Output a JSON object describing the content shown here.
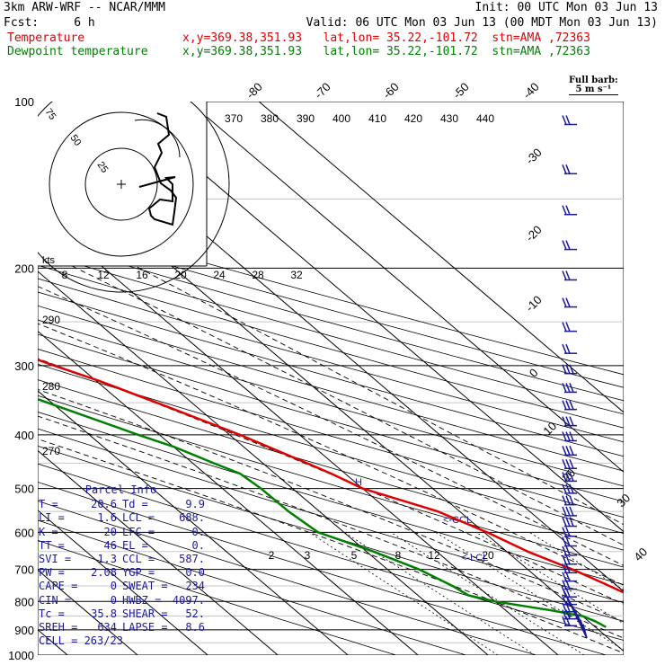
{
  "header": {
    "line1_left": "3km ARW-WRF -- NCAR/MMM",
    "line1_right": "Init: 00 UTC Mon 03 Jun 13",
    "line2_left": "Fcst:     6 h",
    "line2_right": "Valid: 06 UTC Mon 03 Jun 13 (00 MDT Mon 03 Jun 13)",
    "temp_label": "Temperature",
    "temp_info": "x,y=369.38,351.93   lat,lon= 35.22,-101.72  stn=AMA ,72363",
    "dew_label": "Dewpoint temperature",
    "dew_info": "x,y=369.38,351.93   lat,lon= 35.22,-101.72  stn=AMA ,72363"
  },
  "barb_note": {
    "line1": "Full barb:",
    "line2": "5 m s⁻¹"
  },
  "parcel": {
    "title": "Parcel Info",
    "rows": [
      [
        "T",
        "20.6",
        "Td",
        "9.9"
      ],
      [
        "LI",
        "1.6",
        "LCL",
        "688."
      ],
      [
        "K",
        "20",
        "LFC",
        "0."
      ],
      [
        "TT",
        "46",
        "EL",
        "0."
      ],
      [
        "SVI",
        "1.3",
        "CCL",
        "587."
      ],
      [
        "PW",
        "2.08",
        "YGP",
        "0.0"
      ],
      [
        "CAPE",
        "0",
        "SWEAT",
        "234"
      ],
      [
        "CIN",
        "0",
        "HWBZ",
        "4097."
      ],
      [
        "Tc",
        "35.8",
        "SHEAR",
        "52."
      ],
      [
        "SREH",
        "634",
        "LAPSE",
        "8.6"
      ]
    ],
    "cell": "CELL = 263/23"
  },
  "chart_data": {
    "type": "line",
    "title": "",
    "xlabel": "",
    "ylabel": "",
    "pressure_levels_hPa": [
      100,
      200,
      300,
      400,
      500,
      600,
      700,
      800,
      900,
      1000
    ],
    "isotherm_labels_C": [
      "-80",
      "-70",
      "-60",
      "-50",
      "-40",
      "-30",
      "-20",
      "-10",
      "0",
      "10",
      "20",
      "30",
      "40"
    ],
    "theta_labels_K": [
      "370",
      "380",
      "390",
      "400",
      "410",
      "420",
      "430",
      "440"
    ],
    "theta_left_labels_K": [
      "290",
      "280",
      "270"
    ],
    "mixing_ratio_labels": [
      "2",
      "3",
      "5",
      "8",
      "12",
      "20"
    ],
    "hodograph": {
      "rings": [
        "25",
        "50",
        "75"
      ],
      "units": "kts"
    },
    "mixing_ratio_axis_labels": [
      "8",
      "12",
      "16",
      "20",
      "24",
      "28",
      "32"
    ],
    "annotations": {
      "ccl": "<-CCL",
      "lcl": "<-LCL",
      "h_marker": "H"
    },
    "grid": true,
    "series": [
      {
        "key": "temperature",
        "color": "#e00000",
        "points": [
          [
            900,
            22.2
          ],
          [
            885,
            21.9
          ],
          [
            870,
            23.6
          ],
          [
            850,
            24.6
          ],
          [
            830,
            23.4
          ],
          [
            800,
            21.2
          ],
          [
            770,
            19.8
          ],
          [
            740,
            18.4
          ],
          [
            700,
            16.4
          ],
          [
            650,
            13.0
          ],
          [
            600,
            10.4
          ],
          [
            550,
            6.9
          ],
          [
            500,
            0.0
          ],
          [
            470,
            -2.0
          ],
          [
            450,
            -3.7
          ],
          [
            400,
            -8.5
          ],
          [
            350,
            -15.0
          ],
          [
            320,
            -19.5
          ],
          [
            300,
            -23.4
          ],
          [
            280,
            -27.3
          ],
          [
            260,
            -32.8
          ],
          [
            240,
            -36.8
          ],
          [
            220,
            -42.0
          ],
          [
            200,
            -48.0
          ],
          [
            180,
            -53.4
          ],
          [
            168,
            -57.3
          ],
          [
            160,
            -59.3
          ],
          [
            150,
            -59.2
          ],
          [
            140,
            -61.6
          ],
          [
            130,
            -66.0
          ],
          [
            120,
            -66.6
          ],
          [
            110,
            -65.4
          ],
          [
            100,
            -68.2
          ]
        ]
      },
      {
        "key": "dewpoint",
        "color": "#008000",
        "points": [
          [
            890,
            11.5
          ],
          [
            870,
            11.0
          ],
          [
            850,
            10.0
          ],
          [
            830,
            6.5
          ],
          [
            800,
            0.0
          ],
          [
            780,
            -2.8
          ],
          [
            750,
            -3.5
          ],
          [
            700,
            -5.5
          ],
          [
            650,
            -9.0
          ],
          [
            600,
            -13.7
          ],
          [
            550,
            -14.4
          ],
          [
            500,
            -14.5
          ],
          [
            470,
            -15.0
          ],
          [
            450,
            -17.0
          ],
          [
            420,
            -20.0
          ],
          [
            400,
            -23.0
          ],
          [
            350,
            -30.6
          ],
          [
            320,
            -35.4
          ],
          [
            300,
            -39.7
          ],
          [
            270,
            -44.5
          ],
          [
            250,
            -47.3
          ],
          [
            220,
            -52.3
          ],
          [
            200,
            -57.8
          ],
          [
            180,
            -61.8
          ],
          [
            170,
            -59.0
          ],
          [
            160,
            -59.4
          ],
          [
            150,
            -63.0
          ],
          [
            140,
            -69.8
          ],
          [
            130,
            -72.4
          ],
          [
            120,
            -70.0
          ],
          [
            110,
            -70.1
          ],
          [
            100,
            -72.8
          ]
        ]
      }
    ]
  }
}
